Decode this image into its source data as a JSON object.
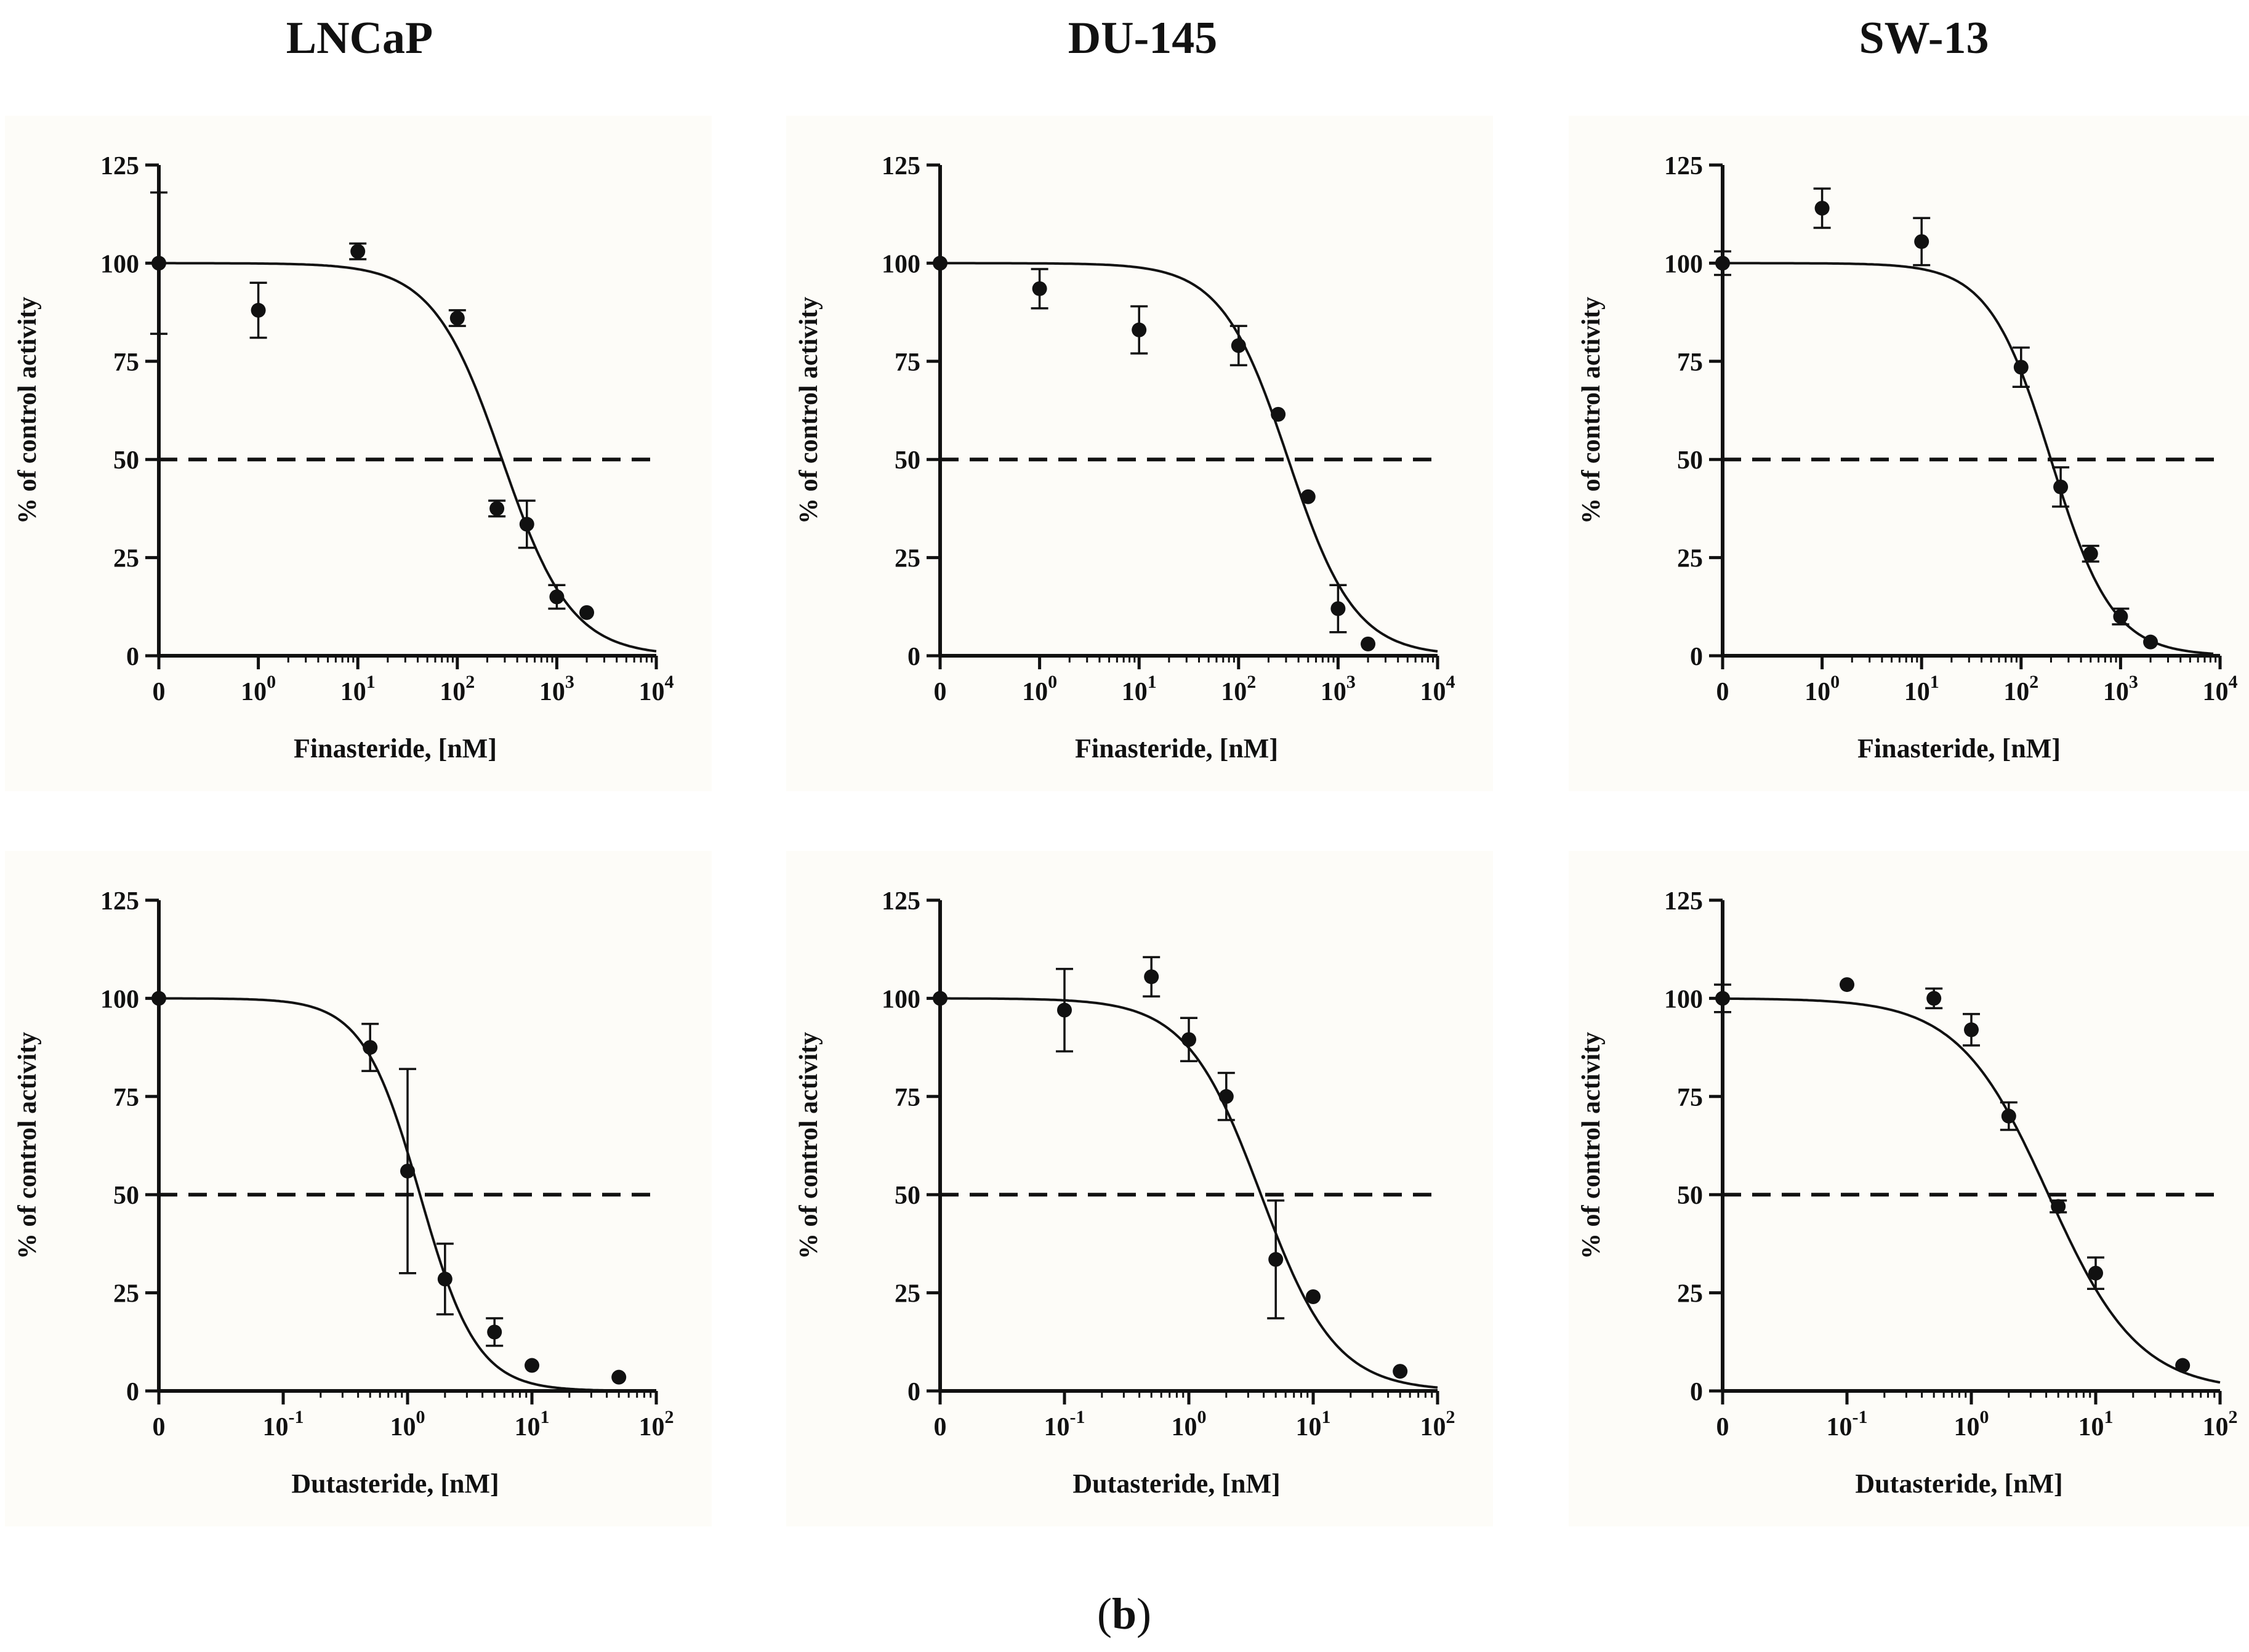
{
  "column_titles": [
    "LNCaP",
    "DU-145",
    "SW-13"
  ],
  "caption": {
    "open": "(",
    "letter": "b",
    "close": ")"
  },
  "colors": {
    "line": "#111111",
    "background": "#fdfcf8"
  },
  "chart_data": [
    {
      "id": "lncap-finasteride",
      "type": "scatter",
      "column": "LNCaP",
      "row": "top",
      "xlabel": "Finasteride, [nM]",
      "ylabel": "% of control activity",
      "xscale": "log",
      "xlim_exp": [
        -1,
        4
      ],
      "zero_tick_exp": -1,
      "xticks": [
        {
          "base": "0",
          "exp": ""
        },
        {
          "base": "10",
          "exp": "0"
        },
        {
          "base": "10",
          "exp": "1"
        },
        {
          "base": "10",
          "exp": "2"
        },
        {
          "base": "10",
          "exp": "3"
        },
        {
          "base": "10",
          "exp": "4"
        }
      ],
      "ylim": [
        0,
        125
      ],
      "yticks": [
        "0",
        "25",
        "50",
        "75",
        "100",
        "125"
      ],
      "reference_line": 50,
      "fit": {
        "top": 100,
        "bottom": 0,
        "log_ic50": 2.45,
        "hill": 1.25
      },
      "points": [
        {
          "x": 0,
          "y": 100,
          "err": 18
        },
        {
          "x": 1,
          "y": 88,
          "err": 7
        },
        {
          "x": 10,
          "y": 103,
          "err": 2
        },
        {
          "x": 100,
          "y": 86,
          "err": 2
        },
        {
          "x": 250,
          "y": 37.5,
          "err": 2
        },
        {
          "x": 500,
          "y": 33.5,
          "err": 6
        },
        {
          "x": 1000,
          "y": 15,
          "err": 3
        },
        {
          "x": 2000,
          "y": 11,
          "err": 0
        }
      ]
    },
    {
      "id": "du145-finasteride",
      "type": "scatter",
      "column": "DU-145",
      "row": "top",
      "xlabel": "Finasteride, [nM]",
      "ylabel": "% of control activity",
      "xscale": "log",
      "xlim_exp": [
        -1,
        4
      ],
      "zero_tick_exp": -1,
      "xticks": [
        {
          "base": "0",
          "exp": ""
        },
        {
          "base": "10",
          "exp": "0"
        },
        {
          "base": "10",
          "exp": "1"
        },
        {
          "base": "10",
          "exp": "2"
        },
        {
          "base": "10",
          "exp": "3"
        },
        {
          "base": "10",
          "exp": "4"
        }
      ],
      "ylim": [
        0,
        125
      ],
      "yticks": [
        "0",
        "25",
        "50",
        "75",
        "100",
        "125"
      ],
      "reference_line": 50,
      "fit": {
        "top": 100,
        "bottom": 0,
        "log_ic50": 2.5,
        "hill": 1.3
      },
      "points": [
        {
          "x": 0,
          "y": 100,
          "err": 0
        },
        {
          "x": 1,
          "y": 93.5,
          "err": 5
        },
        {
          "x": 10,
          "y": 83,
          "err": 6
        },
        {
          "x": 100,
          "y": 79,
          "err": 5
        },
        {
          "x": 250,
          "y": 61.5,
          "err": 0
        },
        {
          "x": 500,
          "y": 40.5,
          "err": 0
        },
        {
          "x": 1000,
          "y": 12,
          "err": 6
        },
        {
          "x": 2000,
          "y": 3,
          "err": 0
        }
      ]
    },
    {
      "id": "sw13-finasteride",
      "type": "scatter",
      "column": "SW-13",
      "row": "top",
      "xlabel": "Finasteride, [nM]",
      "ylabel": "% of control activity",
      "xscale": "log",
      "xlim_exp": [
        -1,
        4
      ],
      "zero_tick_exp": -1,
      "xticks": [
        {
          "base": "0",
          "exp": ""
        },
        {
          "base": "10",
          "exp": "0"
        },
        {
          "base": "10",
          "exp": "1"
        },
        {
          "base": "10",
          "exp": "2"
        },
        {
          "base": "10",
          "exp": "3"
        },
        {
          "base": "10",
          "exp": "4"
        }
      ],
      "ylim": [
        0,
        125
      ],
      "yticks": [
        "0",
        "25",
        "50",
        "75",
        "100",
        "125"
      ],
      "reference_line": 50,
      "fit": {
        "top": 100,
        "bottom": 0,
        "log_ic50": 2.3,
        "hill": 1.4
      },
      "points": [
        {
          "x": 0,
          "y": 100,
          "err": 3
        },
        {
          "x": 1,
          "y": 114,
          "err": 5
        },
        {
          "x": 10,
          "y": 105.5,
          "err": 6
        },
        {
          "x": 100,
          "y": 73.5,
          "err": 5
        },
        {
          "x": 250,
          "y": 43,
          "err": 5
        },
        {
          "x": 500,
          "y": 26,
          "err": 2
        },
        {
          "x": 1000,
          "y": 10,
          "err": 2
        },
        {
          "x": 2000,
          "y": 3.5,
          "err": 0
        }
      ]
    },
    {
      "id": "lncap-dutasteride",
      "type": "scatter",
      "column": "LNCaP",
      "row": "bottom",
      "xlabel": "Dutasteride, [nM]",
      "ylabel": "% of control activity",
      "xscale": "log",
      "xlim_exp": [
        -2,
        2
      ],
      "zero_tick_exp": -2,
      "xticks": [
        {
          "base": "0",
          "exp": ""
        },
        {
          "base": "10",
          "exp": "-1"
        },
        {
          "base": "10",
          "exp": "0"
        },
        {
          "base": "10",
          "exp": "1"
        },
        {
          "base": "10",
          "exp": "2"
        }
      ],
      "ylim": [
        0,
        125
      ],
      "yticks": [
        "0",
        "25",
        "50",
        "75",
        "100",
        "125"
      ],
      "reference_line": 50,
      "fit": {
        "top": 100,
        "bottom": 0,
        "log_ic50": 0.1,
        "hill": 1.9
      },
      "points": [
        {
          "x": 0,
          "y": 100,
          "err": 0
        },
        {
          "x": 0.5,
          "y": 87.5,
          "err": 6
        },
        {
          "x": 1,
          "y": 56,
          "err": 26
        },
        {
          "x": 2,
          "y": 28.5,
          "err": 9
        },
        {
          "x": 5,
          "y": 15,
          "err": 3.5
        },
        {
          "x": 10,
          "y": 6.5,
          "err": 0
        },
        {
          "x": 50,
          "y": 3.5,
          "err": 0
        }
      ]
    },
    {
      "id": "du145-dutasteride",
      "type": "scatter",
      "column": "DU-145",
      "row": "bottom",
      "xlabel": "Dutasteride, [nM]",
      "ylabel": "% of control activity",
      "xscale": "log",
      "xlim_exp": [
        -2,
        2
      ],
      "zero_tick_exp": -2,
      "xticks": [
        {
          "base": "0",
          "exp": ""
        },
        {
          "base": "10",
          "exp": "-1"
        },
        {
          "base": "10",
          "exp": "0"
        },
        {
          "base": "10",
          "exp": "1"
        },
        {
          "base": "10",
          "exp": "2"
        }
      ],
      "ylim": [
        0,
        125
      ],
      "yticks": [
        "0",
        "25",
        "50",
        "75",
        "100",
        "125"
      ],
      "reference_line": 50,
      "fit": {
        "top": 100,
        "bottom": 0,
        "log_ic50": 0.58,
        "hill": 1.45
      },
      "points": [
        {
          "x": 0,
          "y": 100,
          "err": 0
        },
        {
          "x": 0.1,
          "y": 97,
          "err": 10.5
        },
        {
          "x": 0.5,
          "y": 105.5,
          "err": 5
        },
        {
          "x": 1,
          "y": 89.5,
          "err": 5.5
        },
        {
          "x": 2,
          "y": 75,
          "err": 6
        },
        {
          "x": 5,
          "y": 33.5,
          "err": 15
        },
        {
          "x": 10,
          "y": 24,
          "err": 0
        },
        {
          "x": 50,
          "y": 5,
          "err": 0
        }
      ]
    },
    {
      "id": "sw13-dutasteride",
      "type": "scatter",
      "column": "SW-13",
      "row": "bottom",
      "xlabel": "Dutasteride, [nM]",
      "ylabel": "% of control activity",
      "xscale": "log",
      "xlim_exp": [
        -2,
        2
      ],
      "zero_tick_exp": -2,
      "xticks": [
        {
          "base": "0",
          "exp": ""
        },
        {
          "base": "10",
          "exp": "-1"
        },
        {
          "base": "10",
          "exp": "0"
        },
        {
          "base": "10",
          "exp": "1"
        },
        {
          "base": "10",
          "exp": "2"
        }
      ],
      "ylim": [
        0,
        125
      ],
      "yticks": [
        "0",
        "25",
        "50",
        "75",
        "100",
        "125"
      ],
      "reference_line": 50,
      "fit": {
        "top": 100,
        "bottom": 0,
        "log_ic50": 0.62,
        "hill": 1.2
      },
      "points": [
        {
          "x": 0,
          "y": 100,
          "err": 3.5
        },
        {
          "x": 0.1,
          "y": 103.5,
          "err": 0
        },
        {
          "x": 0.5,
          "y": 100,
          "err": 2.5
        },
        {
          "x": 1,
          "y": 92,
          "err": 4
        },
        {
          "x": 2,
          "y": 70,
          "err": 3.5
        },
        {
          "x": 5,
          "y": 47,
          "err": 1.5
        },
        {
          "x": 10,
          "y": 30,
          "err": 4
        },
        {
          "x": 50,
          "y": 6.5,
          "err": 0
        }
      ]
    }
  ]
}
